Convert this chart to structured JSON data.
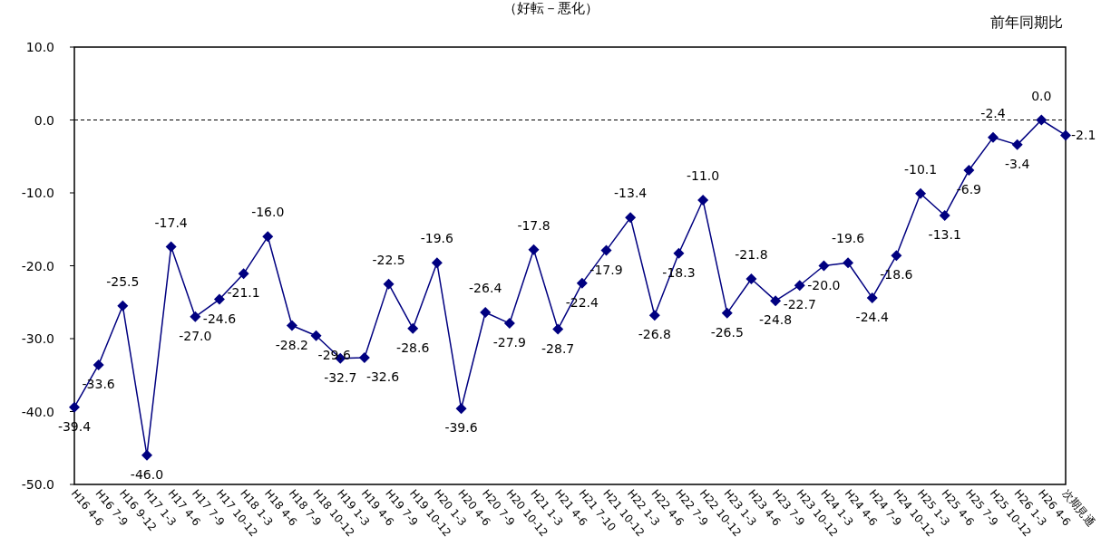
{
  "chart_data": {
    "type": "line",
    "title": "（好転－悪化）",
    "annotations": [
      "前年同期比"
    ],
    "categories": [
      "H16 4-6",
      "H16 7-9",
      "H16 9-12",
      "H17 1-3",
      "H17 4-6",
      "H17 7-9",
      "H17 10-12",
      "H18 1-3",
      "H18 4-6",
      "H18 7-9",
      "H18 10-12",
      "H19 1-3",
      "H19 4-6",
      "H19 7-9",
      "H19 10-12",
      "H20 1-3",
      "H20 4-6",
      "H20 7-9",
      "H20 10-12",
      "H21 1-3",
      "H21 4-6",
      "H21 7-10",
      "H21 10-12",
      "H22 1-3",
      "H22 4-6",
      "H22 7-9",
      "H22 10-12",
      "H23 1-3",
      "H23 4-6",
      "H23 7-9",
      "H23 10-12",
      "H24 1-3",
      "H24 4-6",
      "H24 7-9",
      "H24 10-12",
      "H25 1-3",
      "H25 4-6",
      "H25 7-9",
      "H25 10-12",
      "H26 1-3",
      "H26 4-6",
      "次期見通"
    ],
    "series": [
      {
        "color": "#000080",
        "values": [
          -39.4,
          -33.6,
          -25.5,
          -46.0,
          -17.4,
          -27.0,
          -24.6,
          -21.1,
          -16.0,
          -28.2,
          -29.6,
          -32.7,
          -32.6,
          -22.5,
          -28.6,
          -19.6,
          -39.6,
          -26.4,
          -27.9,
          -17.8,
          -28.7,
          -22.4,
          -17.9,
          -13.4,
          -26.8,
          -18.3,
          -11.0,
          -26.5,
          -21.8,
          -24.8,
          -22.7,
          -20.0,
          -19.6,
          -24.4,
          -18.6,
          -10.1,
          -13.1,
          -6.9,
          -2.4,
          -3.4,
          0.0,
          -2.1
        ],
        "value_labels": [
          "-39.4",
          "-33.6",
          "-25.5",
          "-46.0",
          "-17.4",
          "-27.0",
          "-24.6",
          "-21.1",
          "-16.0",
          "-28.2",
          "-29.6",
          "-32.7",
          "-32.6",
          "-22.5",
          "-28.6",
          "-19.6",
          "-39.6",
          "-26.4",
          "-27.9",
          "-17.8",
          "-28.7",
          "-22.4",
          "-17.9",
          "-13.4",
          "-26.8",
          "-18.3",
          "-11.0",
          "-26.5",
          "-21.8",
          "-24.8",
          "-22.7",
          "-20.0",
          "-19.6",
          "-24.4",
          "-18.6",
          "-10.1",
          "-13.1",
          "-6.9",
          "-2.4",
          "-3.4",
          "0.0",
          "-2.1"
        ]
      }
    ],
    "ylim": [
      -50,
      10
    ],
    "yticks": [
      {
        "value": -50,
        "label": "-50.0"
      },
      {
        "value": -40,
        "label": "-40.0"
      },
      {
        "value": -30,
        "label": "-30.0"
      },
      {
        "value": -20,
        "label": "-20.0"
      },
      {
        "value": -10,
        "label": "-10.0"
      },
      {
        "value": 0,
        "label": "0.0"
      },
      {
        "value": 10,
        "label": "10.0"
      }
    ],
    "ref_lines": [
      {
        "axis": "y",
        "value": 0,
        "line_style": "dashed",
        "color": "#000000"
      }
    ],
    "marker": "diamond",
    "line_style": "solid",
    "grid": false
  }
}
